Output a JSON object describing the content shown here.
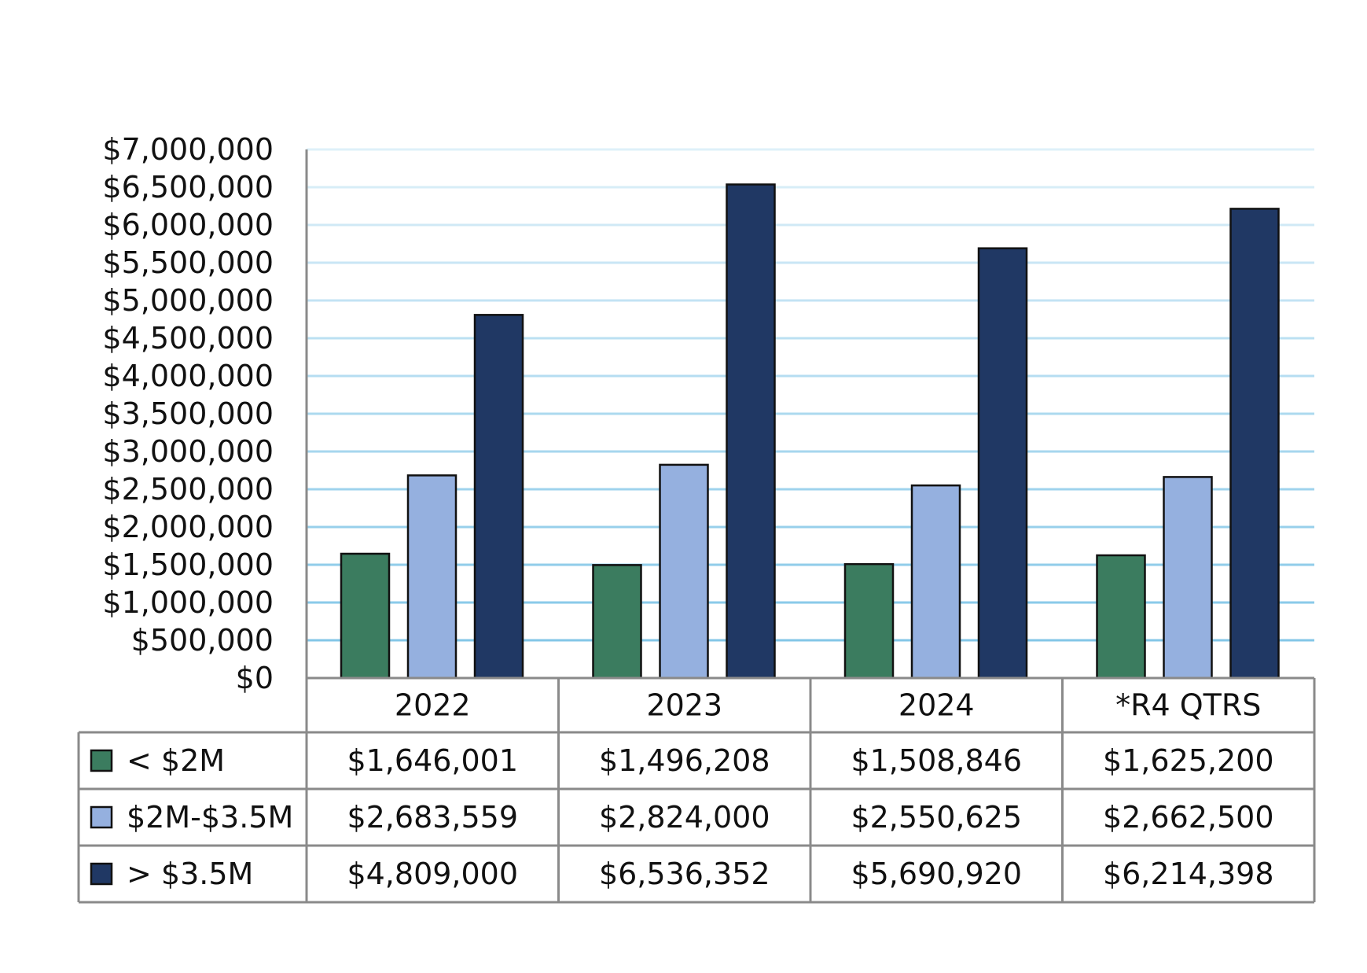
{
  "chart_data": {
    "type": "bar",
    "categories": [
      "2022",
      "2023",
      "2024",
      "*R4 QTRS"
    ],
    "series": [
      {
        "name": "< $2M",
        "color": "#3b7c5f",
        "values": [
          1646001,
          1496208,
          1508846,
          1625200
        ]
      },
      {
        "name": "$2M-$3.5M",
        "color": "#95b0df",
        "values": [
          2683559,
          2824000,
          2550625,
          2662500
        ]
      },
      {
        "name": "> $3.5M",
        "color": "#203864",
        "values": [
          4809000,
          6536352,
          5690920,
          6214398
        ]
      }
    ],
    "table_values": [
      [
        "$1,646,001",
        "$1,496,208",
        "$1,508,846",
        "$1,625,200"
      ],
      [
        "$2,683,559",
        "$2,824,000",
        "$2,550,625",
        "$2,662,500"
      ],
      [
        "$4,809,000",
        "$6,536,352",
        "$5,690,920",
        "$6,214,398"
      ]
    ],
    "y_ticks": [
      "$0",
      "$500,000",
      "$1,000,000",
      "$1,500,000",
      "$2,000,000",
      "$2,500,000",
      "$3,000,000",
      "$3,500,000",
      "$4,000,000",
      "$4,500,000",
      "$5,000,000",
      "$5,500,000",
      "$6,000,000",
      "$6,500,000",
      "$7,000,000"
    ],
    "ylim": [
      0,
      7000000
    ],
    "grid": true,
    "legend": "data-table",
    "gridline_color": "#7cc3e6"
  }
}
